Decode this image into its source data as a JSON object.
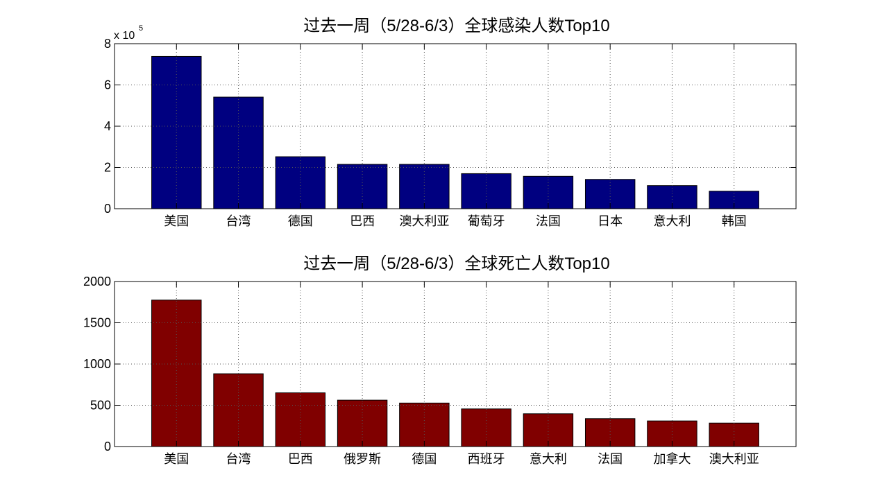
{
  "chart_data": [
    {
      "type": "bar",
      "title": "过去一周（5/28-6/3）全球感染人数Top10",
      "xlabel": "",
      "ylabel": "",
      "exponent_label": "x 10",
      "exponent_power": "5",
      "categories": [
        "美国",
        "台湾",
        "德国",
        "巴西",
        "澳大利亚",
        "葡萄牙",
        "法国",
        "日本",
        "意大利",
        "韩国"
      ],
      "values": [
        738000,
        541000,
        252000,
        215000,
        215000,
        170000,
        157000,
        142000,
        112000,
        85000
      ],
      "ylim": [
        0,
        800000
      ],
      "yticks": [
        0,
        200000,
        400000,
        600000,
        800000
      ],
      "ytick_labels": [
        "0",
        "2",
        "4",
        "6",
        "8"
      ],
      "grid": true,
      "bar_color": "#000080"
    },
    {
      "type": "bar",
      "title": "过去一周（5/28-6/3）全球死亡人数Top10",
      "xlabel": "",
      "ylabel": "",
      "categories": [
        "美国",
        "台湾",
        "巴西",
        "俄罗斯",
        "德国",
        "西班牙",
        "意大利",
        "法国",
        "加拿大",
        "澳大利亚"
      ],
      "values": [
        1775,
        882,
        651,
        562,
        527,
        456,
        397,
        338,
        310,
        284
      ],
      "ylim": [
        0,
        2000
      ],
      "yticks": [
        0,
        500,
        1000,
        1500,
        2000
      ],
      "ytick_labels": [
        "0",
        "500",
        "1000",
        "1500",
        "2000"
      ],
      "grid": true,
      "bar_color": "#800000"
    }
  ]
}
